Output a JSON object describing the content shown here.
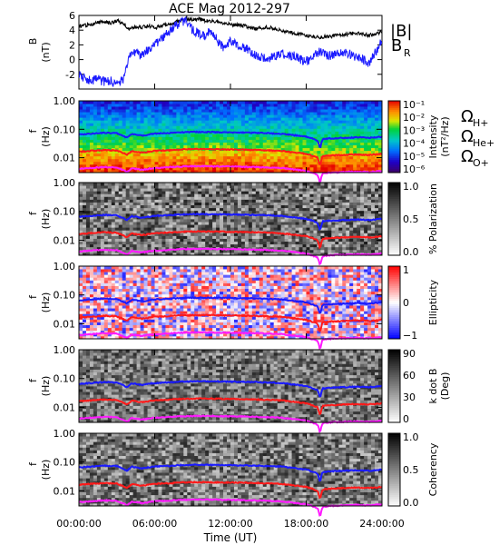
{
  "chart_data": [
    {
      "type": "line",
      "title": "ACE Mag 2012-297",
      "ylabel": "B",
      "yunit": "(nT)",
      "ylim": [
        -4,
        6
      ],
      "yticks": [
        "6",
        "4",
        "2",
        "0",
        "-2"
      ],
      "xlim": [
        0,
        24
      ],
      "series": [
        {
          "name": "|B|",
          "color": "#000000",
          "x": [
            0,
            1,
            1.5,
            2,
            2.5,
            3,
            3.5,
            4,
            4.5,
            5,
            5.5,
            6,
            6.5,
            7,
            7.5,
            8,
            8.5,
            9,
            9.5,
            10,
            11,
            12,
            13,
            14,
            15,
            16,
            17,
            18,
            19,
            20,
            21,
            22,
            23,
            24
          ],
          "y": [
            4.5,
            4.8,
            5.0,
            5.2,
            5.0,
            5.3,
            4.9,
            4.2,
            4.5,
            4.4,
            4.6,
            4.3,
            4.6,
            4.8,
            5.0,
            5.3,
            5.6,
            5.4,
            5.5,
            5.3,
            5.1,
            4.8,
            4.6,
            4.2,
            4.4,
            4.0,
            3.6,
            3.3,
            3.0,
            3.2,
            3.4,
            3.6,
            3.3,
            3.7
          ]
        },
        {
          "name": "B",
          "sub": "R",
          "color": "#1a1aff",
          "x": [
            0,
            0.5,
            1,
            1.5,
            2,
            2.5,
            3,
            3.5,
            4,
            4.5,
            5,
            5.5,
            6,
            6.5,
            7,
            7.5,
            8,
            8.5,
            9,
            9.5,
            10,
            10.5,
            11,
            11.5,
            12,
            13,
            14,
            15,
            16,
            17,
            18,
            19,
            20,
            21,
            22,
            23,
            24
          ],
          "y": [
            -2.0,
            -2.6,
            -2.8,
            -2.7,
            -3.0,
            -2.9,
            -3.2,
            -2.8,
            0.5,
            1.0,
            0.5,
            1.5,
            2.0,
            2.8,
            3.5,
            4.5,
            5.0,
            5.3,
            4.0,
            3.6,
            3.2,
            4.0,
            2.5,
            1.5,
            2.5,
            1.8,
            0.5,
            0.2,
            0.8,
            0.5,
            -0.3,
            1.0,
            0.5,
            1.0,
            0.4,
            -0.5,
            2.5
          ]
        }
      ]
    },
    {
      "type": "heatmap",
      "ylabel": "f",
      "yunit": "(Hz)",
      "yscale": "log",
      "ylim": [
        0.003,
        1.0
      ],
      "yticks": [
        "1.00",
        "0.10",
        "0.01"
      ],
      "colorbar": {
        "label": "Intensity",
        "unit": "(nT²/Hz)",
        "scale": "log",
        "ticks": [
          "10⁻¹",
          "10⁻²",
          "10⁻³",
          "10⁻⁴",
          "10⁻⁵",
          "10⁻⁶"
        ],
        "colormap": "rainbow"
      }
    },
    {
      "type": "heatmap",
      "ylabel": "f",
      "yunit": "(Hz)",
      "yscale": "log",
      "ylim": [
        0.003,
        1.0
      ],
      "yticks": [
        "1.00",
        "0.10",
        "0.01"
      ],
      "colorbar": {
        "label": "% Polarization",
        "ticks": [
          "1.0",
          "0.5",
          "0.0"
        ],
        "colormap": "gray"
      }
    },
    {
      "type": "heatmap",
      "ylabel": "f",
      "yunit": "(Hz)",
      "yscale": "log",
      "ylim": [
        0.003,
        1.0
      ],
      "yticks": [
        "1.00",
        "0.10",
        "0.01"
      ],
      "colorbar": {
        "label": "Ellipticity",
        "ticks": [
          "1",
          "0",
          "−1"
        ],
        "colormap": "bwr"
      }
    },
    {
      "type": "heatmap",
      "ylabel": "f",
      "yunit": "(Hz)",
      "yscale": "log",
      "ylim": [
        0.003,
        1.0
      ],
      "yticks": [
        "1.00",
        "0.10",
        "0.01"
      ],
      "colorbar": {
        "label": "k dot B",
        "unit": "(Deg)",
        "ticks": [
          "90",
          "60",
          "30",
          "0"
        ],
        "colormap": "gray"
      }
    },
    {
      "type": "heatmap",
      "ylabel": "f",
      "yunit": "(Hz)",
      "yscale": "log",
      "ylim": [
        0.003,
        1.0
      ],
      "yticks": [
        "1.00",
        "0.10",
        "0.01"
      ],
      "colorbar": {
        "label": "Coherency",
        "ticks": [
          "1.0",
          "0.5",
          "0.0"
        ],
        "colormap": "gray"
      }
    }
  ],
  "gyro_lines": {
    "legend": [
      {
        "symbol": "Ω",
        "sub": "H+",
        "color": "#1a1aff"
      },
      {
        "symbol": "Ω",
        "sub": "He+",
        "color": "#ff1a1a"
      },
      {
        "symbol": "Ω",
        "sub": "O+",
        "color": "#ff1aff"
      }
    ],
    "x": [
      0,
      1,
      2,
      3,
      3.8,
      4.2,
      5,
      5.5,
      6,
      7,
      8,
      9,
      10,
      12,
      14,
      16,
      17,
      18,
      18.9,
      19.1,
      19.3,
      20,
      21,
      22,
      23,
      24
    ],
    "h_plus": [
      0.065,
      0.07,
      0.075,
      0.072,
      0.05,
      0.068,
      0.06,
      0.065,
      0.07,
      0.073,
      0.078,
      0.08,
      0.08,
      0.078,
      0.075,
      0.07,
      0.062,
      0.055,
      0.04,
      0.02,
      0.045,
      0.048,
      0.05,
      0.052,
      0.05,
      0.055
    ]
  },
  "x_axis": {
    "label": "Time (UT)",
    "ticks": [
      "00:00:00",
      "06:00:00",
      "12:00:00",
      "18:00:00",
      "24:00:00"
    ]
  }
}
